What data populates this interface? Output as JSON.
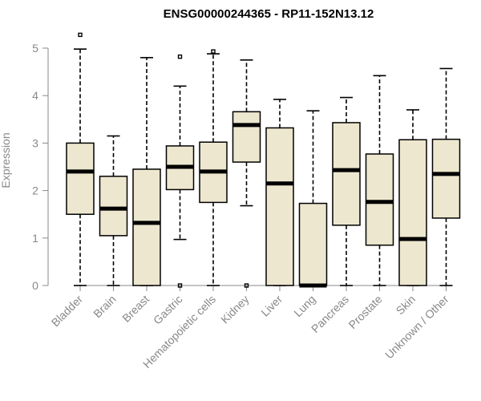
{
  "chart_data": {
    "type": "boxplot",
    "title": "ENSG00000244365 - RP11-152N13.12",
    "xlabel": "",
    "ylabel": "Expression",
    "ylim": [
      0,
      5
    ],
    "yticks": [
      0,
      1,
      2,
      3,
      4,
      5
    ],
    "colors": {
      "box_fill": "#ede7cf",
      "stroke": "#000000",
      "axis": "#888888"
    },
    "categories": [
      "Bladder",
      "Brain",
      "Breast",
      "Gastric",
      "Hematopoietic cells",
      "Kidney",
      "Liver",
      "Lung",
      "Pancreas",
      "Prostate",
      "Skin",
      "Unknown / Other"
    ],
    "series": [
      {
        "name": "Bladder",
        "min": 0,
        "q1": 1.5,
        "median": 2.4,
        "q3": 3.0,
        "max": 4.98,
        "outliers": [
          5.28
        ]
      },
      {
        "name": "Brain",
        "min": 0,
        "q1": 1.05,
        "median": 1.62,
        "q3": 2.3,
        "max": 3.15,
        "outliers": []
      },
      {
        "name": "Breast",
        "min": 0,
        "q1": 0,
        "median": 1.32,
        "q3": 2.45,
        "max": 4.8,
        "outliers": []
      },
      {
        "name": "Gastric",
        "min": 0.97,
        "q1": 2.02,
        "median": 2.5,
        "q3": 2.94,
        "max": 4.2,
        "outliers": [
          4.82,
          0
        ]
      },
      {
        "name": "Hematopoietic cells",
        "min": 0,
        "q1": 1.75,
        "median": 2.4,
        "q3": 3.02,
        "max": 4.88,
        "outliers": [
          4.93
        ]
      },
      {
        "name": "Kidney",
        "min": 1.68,
        "q1": 2.6,
        "median": 3.38,
        "q3": 3.66,
        "max": 4.75,
        "outliers": [
          0
        ]
      },
      {
        "name": "Liver",
        "min": 0,
        "q1": 0,
        "median": 2.15,
        "q3": 3.32,
        "max": 3.92,
        "outliers": []
      },
      {
        "name": "Lung",
        "min": 0,
        "q1": 0,
        "median": 0,
        "q3": 1.73,
        "max": 3.68,
        "outliers": []
      },
      {
        "name": "Pancreas",
        "min": 0,
        "q1": 1.27,
        "median": 2.43,
        "q3": 3.43,
        "max": 3.96,
        "outliers": []
      },
      {
        "name": "Prostate",
        "min": 0,
        "q1": 0.85,
        "median": 1.76,
        "q3": 2.77,
        "max": 4.42,
        "outliers": []
      },
      {
        "name": "Skin",
        "min": 0,
        "q1": 0,
        "median": 0.98,
        "q3": 3.07,
        "max": 3.7,
        "outliers": []
      },
      {
        "name": "Unknown / Other",
        "min": 0,
        "q1": 1.42,
        "median": 2.35,
        "q3": 3.08,
        "max": 4.57,
        "outliers": []
      }
    ]
  }
}
